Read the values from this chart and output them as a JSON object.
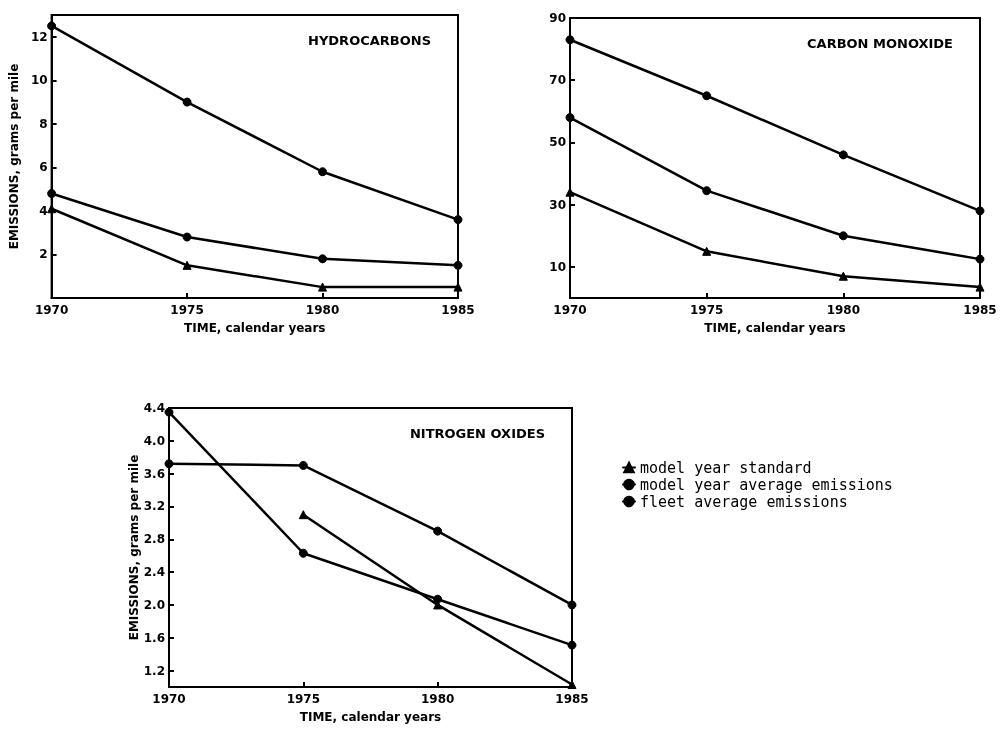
{
  "chart_data": [
    {
      "type": "line",
      "title": "HYDROCARBONS",
      "xlabel": "TIME, calendar years",
      "ylabel": "EMISSIONS, grams per mile",
      "x": [
        1970,
        1975,
        1980,
        1985
      ],
      "xlim": [
        1970,
        1985
      ],
      "xticks": [
        1970,
        1975,
        1980,
        1985
      ],
      "ylim": [
        0,
        13
      ],
      "yticks": [
        2,
        4,
        6,
        8,
        10,
        12
      ],
      "legend": false,
      "line_style": "solid",
      "series": [
        {
          "color": "#000000",
          "marker": "triangle",
          "values": [
            4.1,
            1.5,
            0.5,
            0.5
          ]
        },
        {
          "color": "#000000",
          "marker": "circle",
          "values": [
            4.8,
            2.8,
            1.8,
            1.5
          ]
        },
        {
          "color": "#000000",
          "marker": "circle",
          "values": [
            12.5,
            9.0,
            5.8,
            3.6
          ]
        }
      ]
    },
    {
      "type": "line",
      "title": "CARBON MONOXIDE",
      "xlabel": "TIME, calendar years",
      "x": [
        1970,
        1975,
        1980,
        1985
      ],
      "xlim": [
        1970,
        1985
      ],
      "xticks": [
        1970,
        1975,
        1980,
        1985
      ],
      "ylim": [
        0,
        90
      ],
      "yticks": [
        10,
        30,
        50,
        70,
        90
      ],
      "legend": false,
      "line_style": "solid",
      "series": [
        {
          "color": "#000000",
          "marker": "triangle",
          "values": [
            34,
            15,
            7,
            3.5
          ]
        },
        {
          "color": "#000000",
          "marker": "circle",
          "values": [
            58,
            34.5,
            20,
            12.5
          ]
        },
        {
          "color": "#000000",
          "marker": "circle",
          "values": [
            83,
            65,
            46,
            28
          ]
        }
      ]
    },
    {
      "type": "line",
      "title": "NITROGEN OXIDES",
      "xlabel": "TIME, calendar years",
      "ylabel": "EMISSIONS, grams per mile",
      "x": [
        1970,
        1975,
        1980,
        1985
      ],
      "xlim": [
        1970,
        1985
      ],
      "xticks": [
        1970,
        1975,
        1980,
        1985
      ],
      "ylim": [
        1.0,
        4.4
      ],
      "yticks": [
        {
          "value": 1.2,
          "label": "1.2"
        },
        {
          "value": 1.6,
          "label": "1.6"
        },
        {
          "value": 2.0,
          "label": "2.0"
        },
        {
          "value": 2.4,
          "label": "2.4"
        },
        {
          "value": 2.8,
          "label": "2.8"
        },
        {
          "value": 3.2,
          "label": "3.2"
        },
        {
          "value": 3.6,
          "label": "3.6"
        },
        {
          "value": 4.0,
          "label": "4.0"
        },
        {
          "value": 4.4,
          "label": "4.4"
        }
      ],
      "legend": "right",
      "line_style": "solid",
      "series": [
        {
          "name": "model year standard",
          "color": "#000000",
          "marker": "triangle",
          "values": [
            null,
            3.1,
            2.0,
            1.03
          ]
        },
        {
          "name": "model year average emissions",
          "color": "#000000",
          "marker": "circle",
          "values": [
            4.35,
            2.63,
            2.07,
            1.51
          ]
        },
        {
          "name": "fleet average emissions",
          "color": "#000000",
          "marker": "circle",
          "values": [
            3.72,
            3.7,
            2.9,
            2.0
          ]
        }
      ]
    }
  ]
}
